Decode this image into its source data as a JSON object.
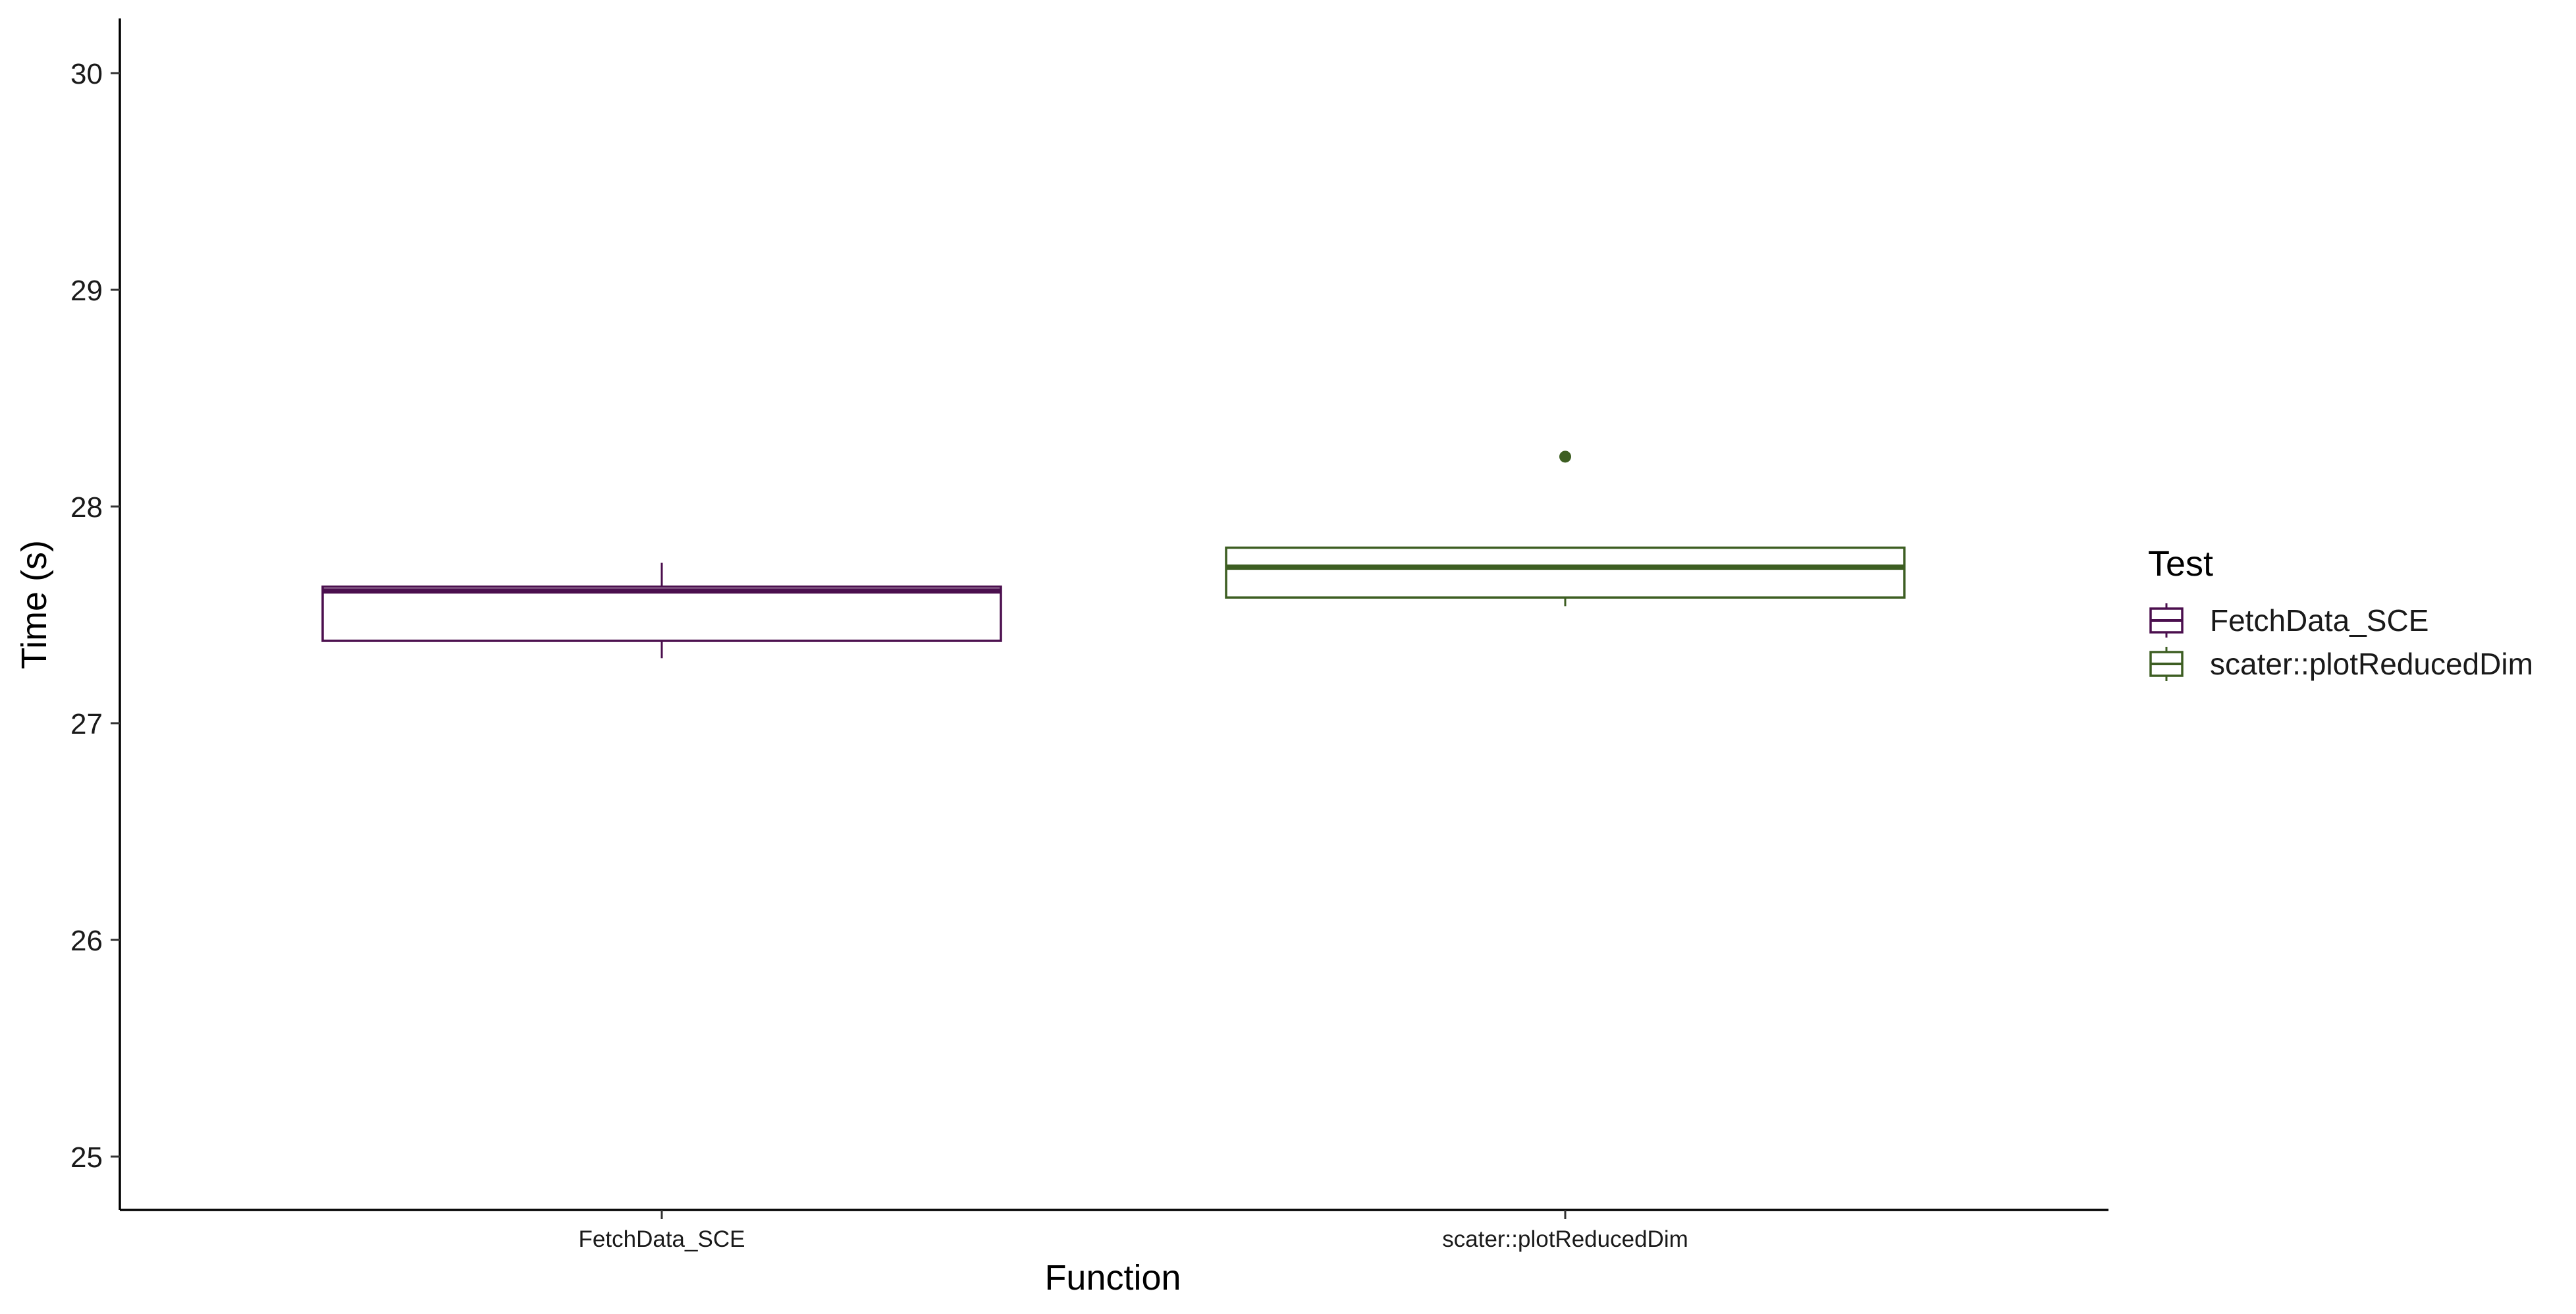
{
  "chart_data": {
    "type": "boxplot",
    "title": "",
    "xlabel": "Function",
    "ylabel": "Time (s)",
    "ylim": [
      24.75,
      30.25
    ],
    "yticks": [
      25,
      26,
      27,
      28,
      29,
      30
    ],
    "categories": [
      "FetchData_SCE",
      "scater::plotReducedDim"
    ],
    "grid": false,
    "legend": {
      "title": "Test",
      "position": "right",
      "entries": [
        "FetchData_SCE",
        "scater::plotReducedDim"
      ]
    },
    "series": [
      {
        "name": "FetchData_SCE",
        "color": "#4b0f4e",
        "stats": {
          "min": 27.3,
          "q1": 27.38,
          "median": 27.61,
          "q3": 27.63,
          "max": 27.74
        },
        "outliers": []
      },
      {
        "name": "scater::plotReducedDim",
        "color": "#3d5e22",
        "stats": {
          "min": 27.54,
          "q1": 27.58,
          "median": 27.72,
          "q3": 27.81,
          "max": 27.81
        },
        "outliers": [
          28.23
        ]
      }
    ]
  }
}
